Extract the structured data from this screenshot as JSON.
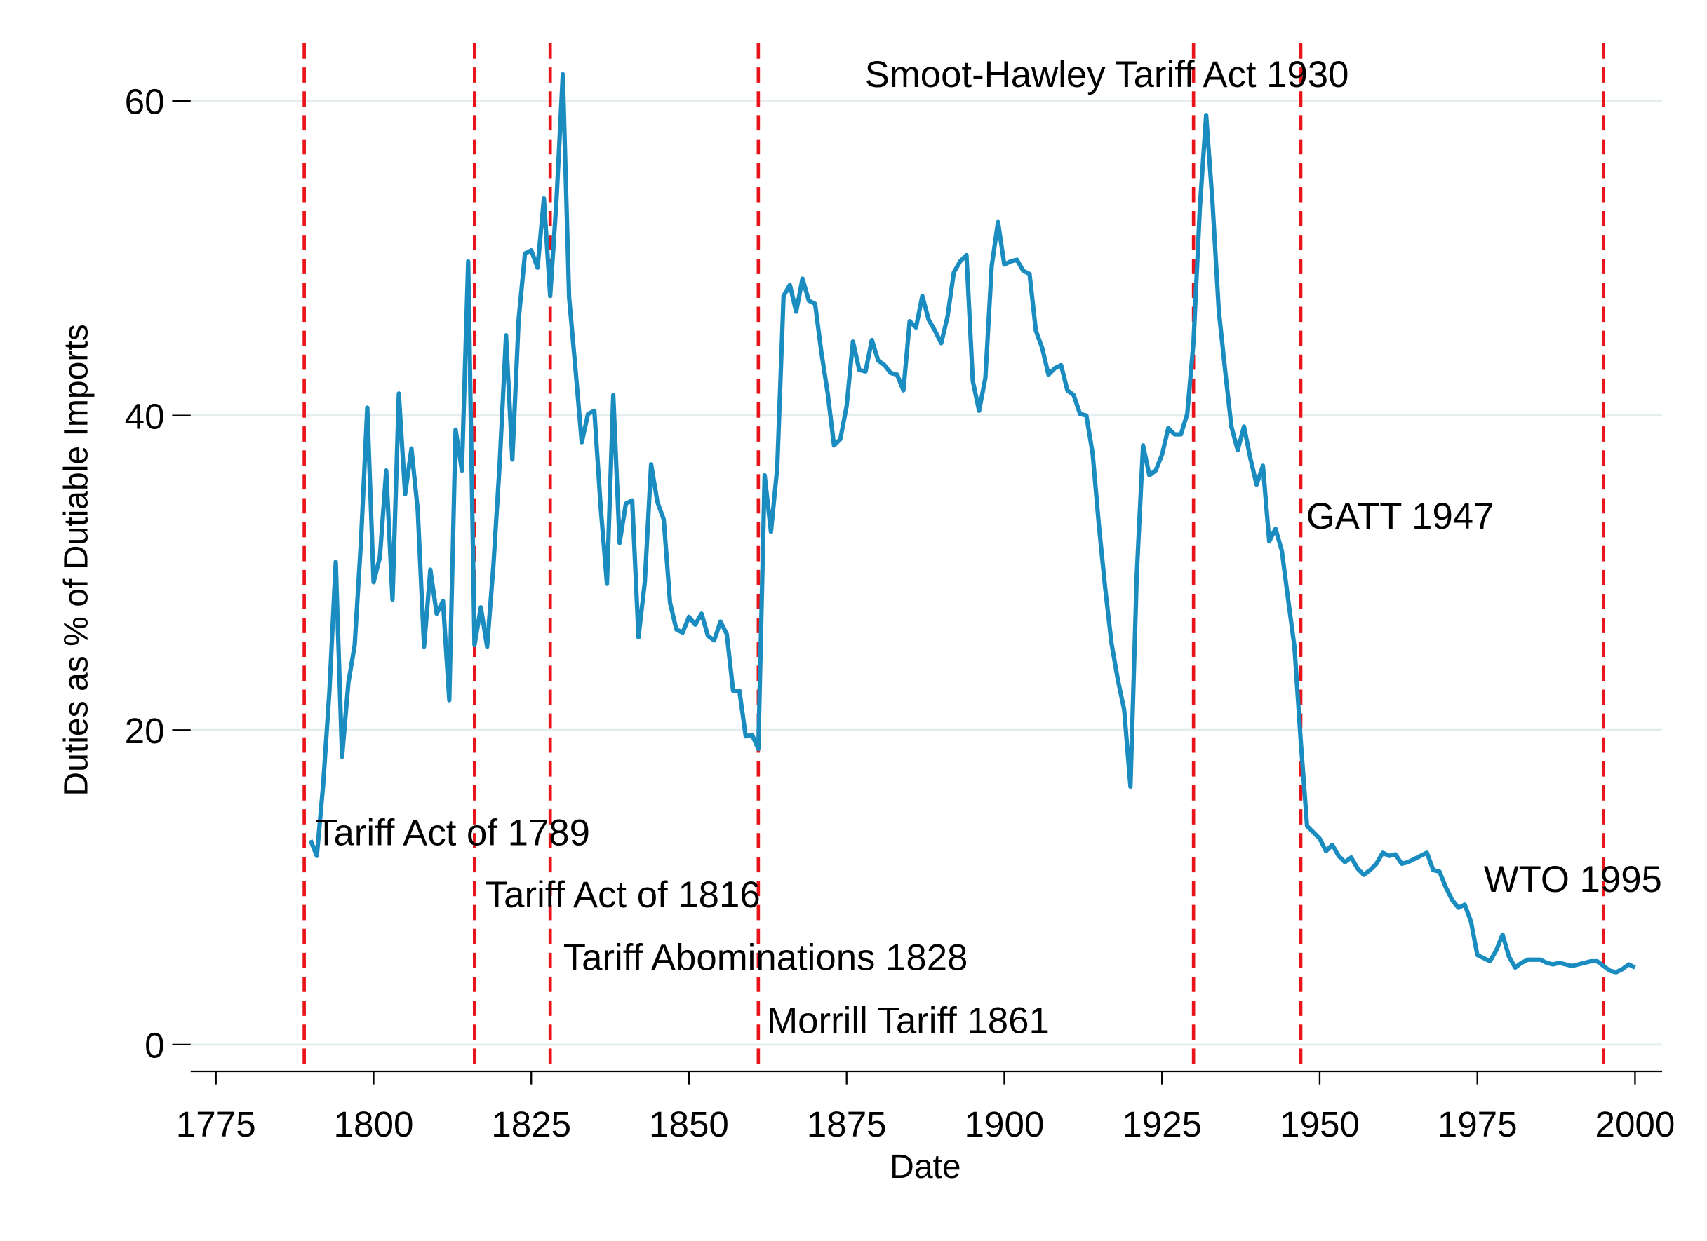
{
  "chart_data": {
    "type": "line",
    "xlabel": "Date",
    "ylabel": "Duties as % of Dutiable Imports",
    "x": [
      1790,
      1791,
      1792,
      1793,
      1794,
      1795,
      1796,
      1797,
      1798,
      1799,
      1800,
      1801,
      1802,
      1803,
      1804,
      1805,
      1806,
      1807,
      1808,
      1809,
      1810,
      1811,
      1812,
      1813,
      1814,
      1815,
      1816,
      1817,
      1818,
      1819,
      1820,
      1821,
      1822,
      1823,
      1824,
      1825,
      1826,
      1827,
      1828,
      1829,
      1830,
      1831,
      1832,
      1833,
      1834,
      1835,
      1836,
      1837,
      1838,
      1839,
      1840,
      1841,
      1842,
      1843,
      1844,
      1845,
      1846,
      1847,
      1848,
      1849,
      1850,
      1851,
      1852,
      1853,
      1854,
      1855,
      1856,
      1857,
      1858,
      1859,
      1860,
      1861,
      1862,
      1863,
      1864,
      1865,
      1866,
      1867,
      1868,
      1869,
      1870,
      1871,
      1872,
      1873,
      1874,
      1875,
      1876,
      1877,
      1878,
      1879,
      1880,
      1881,
      1882,
      1883,
      1884,
      1885,
      1886,
      1887,
      1888,
      1889,
      1890,
      1891,
      1892,
      1893,
      1894,
      1895,
      1896,
      1897,
      1898,
      1899,
      1900,
      1901,
      1902,
      1903,
      1904,
      1905,
      1906,
      1907,
      1908,
      1909,
      1910,
      1911,
      1912,
      1913,
      1914,
      1915,
      1916,
      1917,
      1918,
      1919,
      1920,
      1921,
      1922,
      1923,
      1924,
      1925,
      1926,
      1927,
      1928,
      1929,
      1930,
      1931,
      1932,
      1933,
      1934,
      1935,
      1936,
      1937,
      1938,
      1939,
      1940,
      1941,
      1942,
      1943,
      1944,
      1945,
      1946,
      1947,
      1948,
      1949,
      1950,
      1951,
      1952,
      1953,
      1954,
      1955,
      1956,
      1957,
      1958,
      1959,
      1960,
      1961,
      1962,
      1963,
      1964,
      1965,
      1966,
      1967,
      1968,
      1969,
      1970,
      1971,
      1972,
      1973,
      1974,
      1975,
      1976,
      1977,
      1978,
      1979,
      1980,
      1981,
      1982,
      1983,
      1984,
      1985,
      1986,
      1987,
      1988,
      1989,
      1990,
      1991,
      1992,
      1993,
      1994,
      1995,
      1996,
      1997,
      1998,
      1999,
      2000
    ],
    "series": [
      {
        "color": "#1a8cc0",
        "values": [
          13,
          12,
          16.5,
          22.5,
          30.7,
          18.3,
          23,
          25.4,
          32,
          40.5,
          29.4,
          31,
          36.5,
          28.3,
          41.4,
          35,
          37.9,
          34,
          25.3,
          30.2,
          27.4,
          28.2,
          21.9,
          39.1,
          36.5,
          49.8,
          25.4,
          27.8,
          25.3,
          30.5,
          37,
          45.1,
          37.2,
          46.1,
          50.3,
          50.5,
          49.4,
          53.8,
          47.6,
          53.7,
          61.7,
          47.5,
          43,
          38.3,
          40.1,
          40.3,
          34.2,
          29.3,
          41.3,
          31.9,
          34.4,
          34.6,
          25.9,
          29.4,
          36.9,
          34.5,
          33.4,
          28.1,
          26.4,
          26.2,
          27.2,
          26.7,
          27.4,
          26,
          25.7,
          26.9,
          26.1,
          22.5,
          22.5,
          19.6,
          19.7,
          18.8,
          36.2,
          32.6,
          36.7,
          47.6,
          48.3,
          46.6,
          48.7,
          47.3,
          47.1,
          44,
          41.4,
          38.1,
          38.5,
          40.6,
          44.7,
          42.9,
          42.8,
          44.8,
          43.5,
          43.2,
          42.7,
          42.6,
          41.6,
          46,
          45.6,
          47.6,
          46.1,
          45.4,
          44.6,
          46.3,
          49.1,
          49.8,
          50.2,
          42.2,
          40.3,
          42.4,
          49.5,
          52.3,
          49.6,
          49.8,
          49.9,
          49.2,
          49,
          45.4,
          44.3,
          42.6,
          43,
          43.2,
          41.6,
          41.3,
          40.1,
          40,
          37.6,
          33,
          29,
          25.5,
          23.2,
          21.3,
          16.4,
          29.9,
          38.1,
          36.2,
          36.5,
          37.5,
          39.2,
          38.8,
          38.8,
          40.1,
          44.7,
          53.2,
          59.1,
          53.6,
          46.7,
          42.9,
          39.3,
          37.8,
          39.3,
          37.3,
          35.6,
          36.8,
          32,
          32.8,
          31.4,
          28.3,
          25.3,
          19.3,
          13.9,
          13.5,
          13.1,
          12.3,
          12.7,
          12,
          11.6,
          11.9,
          11.2,
          10.8,
          11.1,
          11.5,
          12.2,
          12,
          12.1,
          11.5,
          11.6,
          11.8,
          12,
          12.2,
          11.1,
          11,
          10,
          9.2,
          8.7,
          8.9,
          7.8,
          5.7,
          5.5,
          5.3,
          6,
          7,
          5.6,
          4.9,
          5.2,
          5.4,
          5.4,
          5.4,
          5.2,
          5.1,
          5.2,
          5.1,
          5,
          5.1,
          5.2,
          5.3,
          5.3,
          5,
          4.7,
          4.6,
          4.8,
          5.1,
          4.9
        ]
      }
    ],
    "xlim": [
      1771,
      2004.3
    ],
    "ylim": [
      -1.7,
      64
    ],
    "xticks": [
      1775,
      1800,
      1825,
      1850,
      1875,
      1900,
      1925,
      1950,
      1975,
      2000
    ],
    "yticks": [
      0,
      20,
      40,
      60
    ],
    "grid": true,
    "vline_color": "#e8141a",
    "annotations": [
      {
        "text": "Tariff Act of 1789",
        "x": 1789
      },
      {
        "text": "Tariff Act of 1816",
        "x": 1816
      },
      {
        "text": "Tariff Abominations 1828",
        "x": 1828
      },
      {
        "text": "Morrill Tariff 1861",
        "x": 1861
      },
      {
        "text": "Smoot-Hawley Tariff Act 1930",
        "x": 1930
      },
      {
        "text": "GATT 1947",
        "x": 1947
      },
      {
        "text": "WTO 1995",
        "x": 1995
      }
    ]
  }
}
